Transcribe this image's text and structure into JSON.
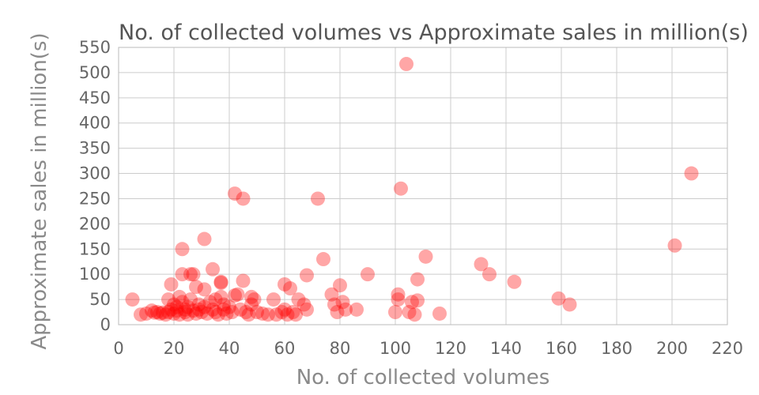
{
  "chart_data": {
    "type": "scatter",
    "title": "No. of collected volumes vs Approximate sales in million(s)",
    "xlabel": "No. of collected volumes",
    "ylabel": "Approximate sales in million(s)",
    "xlim": [
      0,
      220
    ],
    "ylim": [
      0,
      550
    ],
    "xticks": [
      0,
      20,
      40,
      60,
      80,
      100,
      120,
      140,
      160,
      180,
      200,
      220
    ],
    "yticks": [
      0,
      50,
      100,
      150,
      200,
      250,
      300,
      350,
      400,
      450,
      500,
      550
    ],
    "grid": true,
    "marker_color": "#ff0000",
    "marker_opacity": 0.35,
    "series": [
      {
        "points": [
          [
            5,
            50
          ],
          [
            8,
            20
          ],
          [
            10,
            22
          ],
          [
            12,
            28
          ],
          [
            13,
            24
          ],
          [
            14,
            25
          ],
          [
            15,
            22
          ],
          [
            16,
            24
          ],
          [
            17,
            20
          ],
          [
            18,
            50
          ],
          [
            18,
            25
          ],
          [
            19,
            80
          ],
          [
            19,
            30
          ],
          [
            20,
            22
          ],
          [
            20,
            40
          ],
          [
            21,
            35
          ],
          [
            21,
            28
          ],
          [
            22,
            55
          ],
          [
            22,
            20
          ],
          [
            23,
            150
          ],
          [
            23,
            100
          ],
          [
            23,
            45
          ],
          [
            24,
            30
          ],
          [
            24,
            25
          ],
          [
            25,
            35
          ],
          [
            25,
            20
          ],
          [
            26,
            100
          ],
          [
            26,
            50
          ],
          [
            27,
            100
          ],
          [
            27,
            28
          ],
          [
            28,
            75
          ],
          [
            28,
            22
          ],
          [
            29,
            40
          ],
          [
            29,
            30
          ],
          [
            30,
            25
          ],
          [
            31,
            170
          ],
          [
            31,
            35
          ],
          [
            31,
            70
          ],
          [
            32,
            22
          ],
          [
            33,
            45
          ],
          [
            34,
            110
          ],
          [
            34,
            30
          ],
          [
            35,
            50
          ],
          [
            35,
            25
          ],
          [
            36,
            20
          ],
          [
            37,
            85
          ],
          [
            37,
            83
          ],
          [
            37,
            55
          ],
          [
            38,
            40
          ],
          [
            38,
            30
          ],
          [
            39,
            22
          ],
          [
            40,
            35
          ],
          [
            41,
            25
          ],
          [
            42,
            260
          ],
          [
            42,
            58
          ],
          [
            43,
            60
          ],
          [
            44,
            30
          ],
          [
            45,
            250
          ],
          [
            45,
            87
          ],
          [
            46,
            25
          ],
          [
            47,
            20
          ],
          [
            48,
            55
          ],
          [
            48,
            40
          ],
          [
            49,
            50
          ],
          [
            50,
            25
          ],
          [
            52,
            22
          ],
          [
            54,
            20
          ],
          [
            56,
            50
          ],
          [
            57,
            20
          ],
          [
            59,
            25
          ],
          [
            60,
            80
          ],
          [
            60,
            30
          ],
          [
            61,
            20
          ],
          [
            62,
            72
          ],
          [
            63,
            25
          ],
          [
            64,
            20
          ],
          [
            65,
            50
          ],
          [
            67,
            40
          ],
          [
            68,
            98
          ],
          [
            68,
            30
          ],
          [
            72,
            250
          ],
          [
            74,
            130
          ],
          [
            77,
            60
          ],
          [
            78,
            40
          ],
          [
            79,
            25
          ],
          [
            80,
            78
          ],
          [
            81,
            45
          ],
          [
            82,
            30
          ],
          [
            86,
            30
          ],
          [
            90,
            100
          ],
          [
            100,
            25
          ],
          [
            101,
            60
          ],
          [
            101,
            50
          ],
          [
            102,
            270
          ],
          [
            104,
            517
          ],
          [
            105,
            25
          ],
          [
            106,
            45
          ],
          [
            107,
            20
          ],
          [
            108,
            90
          ],
          [
            108,
            48
          ],
          [
            111,
            135
          ],
          [
            116,
            22
          ],
          [
            131,
            120
          ],
          [
            134,
            100
          ],
          [
            143,
            85
          ],
          [
            159,
            52
          ],
          [
            163,
            40
          ],
          [
            201,
            157
          ],
          [
            207,
            300
          ]
        ]
      }
    ]
  }
}
